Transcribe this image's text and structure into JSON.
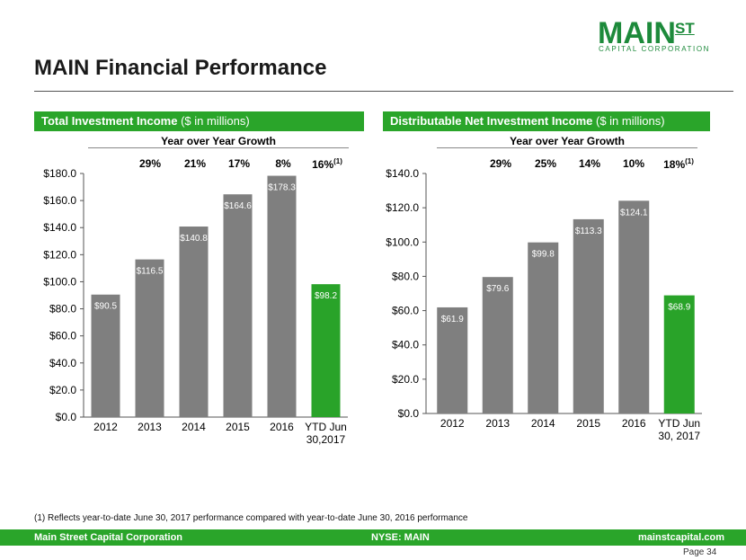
{
  "header": {
    "title": "MAIN Financial Performance",
    "logo_main": "MAIN",
    "logo_st": "ST",
    "logo_sub": "CAPITAL CORPORATION"
  },
  "colors": {
    "bar": "#7f7f7f",
    "highlight": "#29a329",
    "accent": "#2aa52a"
  },
  "left_panel": {
    "banner_bold": "Total Investment Income",
    "banner_rest": " ($ in millions)",
    "yoy_title": "Year over Year Growth",
    "growth": [
      "29%",
      "21%",
      "17%",
      "8%",
      "16%"
    ],
    "growth_note": "(1)"
  },
  "right_panel": {
    "banner_bold": "Distributable Net Investment Income",
    "banner_rest": " ($ in millions)",
    "yoy_title": "Year over Year Growth",
    "growth": [
      "29%",
      "25%",
      "14%",
      "10%",
      "18%"
    ],
    "growth_note": "(1)"
  },
  "chart_data": [
    {
      "type": "bar",
      "title": "Total Investment Income ($ in millions)",
      "categories": [
        "2012",
        "2013",
        "2014",
        "2015",
        "2016",
        "YTD Jun 30,2017"
      ],
      "category_lines": [
        [
          "2012"
        ],
        [
          "2013"
        ],
        [
          "2014"
        ],
        [
          "2015"
        ],
        [
          "2016"
        ],
        [
          "YTD Jun",
          "30,2017"
        ]
      ],
      "values": [
        90.5,
        116.5,
        140.8,
        164.6,
        178.3,
        98.2
      ],
      "data_labels": [
        "$90.5",
        "$116.5",
        "$140.8",
        "$164.6",
        "$178.3",
        "$98.2"
      ],
      "highlight_index": 5,
      "ylim": [
        0,
        180
      ],
      "yticks": [
        0,
        20,
        40,
        60,
        80,
        100,
        120,
        140,
        160,
        180
      ],
      "ytick_labels": [
        "$0.0",
        "$20.0",
        "$40.0",
        "$60.0",
        "$80.0",
        "$100.0",
        "$120.0",
        "$140.0",
        "$160.0",
        "$180.0"
      ],
      "grid": false
    },
    {
      "type": "bar",
      "title": "Distributable Net Investment Income ($ in millions)",
      "categories": [
        "2012",
        "2013",
        "2014",
        "2015",
        "2016",
        "YTD Jun 30, 2017"
      ],
      "category_lines": [
        [
          "2012"
        ],
        [
          "2013"
        ],
        [
          "2014"
        ],
        [
          "2015"
        ],
        [
          "2016"
        ],
        [
          "YTD Jun",
          "30, 2017"
        ]
      ],
      "values": [
        61.9,
        79.6,
        99.8,
        113.3,
        124.1,
        68.9
      ],
      "data_labels": [
        "$61.9",
        "$79.6",
        "$99.8",
        "$113.3",
        "$124.1",
        "$68.9"
      ],
      "highlight_index": 5,
      "ylim": [
        0,
        140
      ],
      "yticks": [
        0,
        20,
        40,
        60,
        80,
        100,
        120,
        140
      ],
      "ytick_labels": [
        "$0.0",
        "$20.0",
        "$40.0",
        "$60.0",
        "$80.0",
        "$100.0",
        "$120.0",
        "$140.0"
      ],
      "grid": false
    }
  ],
  "footnote": "(1) Reflects year-to-date June 30, 2017 performance compared with year-to-date June 30, 2016 performance",
  "footer": {
    "left": "Main Street Capital Corporation",
    "center": "NYSE: MAIN",
    "right": "mainstcapital.com"
  },
  "page_label": "Page 34"
}
